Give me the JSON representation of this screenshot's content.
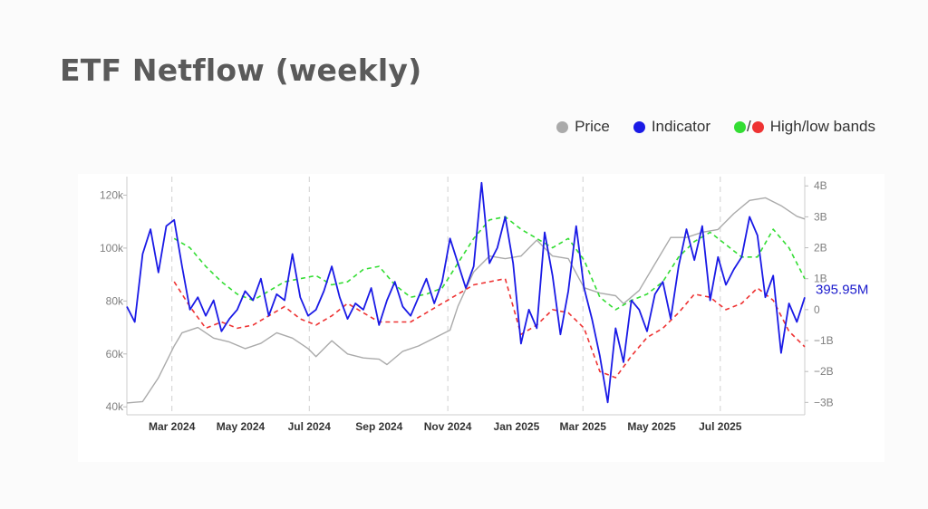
{
  "title": "ETF Netflow (weekly)",
  "legend": {
    "price": {
      "label": "Price",
      "color": "#aaaaaa",
      "icon": "circle-marker"
    },
    "indicator": {
      "label": "Indicator",
      "color": "#1a1ae6",
      "icon": "circle-marker"
    },
    "bands": {
      "label": "High/low bands",
      "separator": "/",
      "high_color": "#33dd33",
      "low_color": "#ee3333"
    }
  },
  "chart_data": {
    "type": "line",
    "x_type": "date",
    "xlim": [
      "2024-01-21",
      "2025-09-14"
    ],
    "x_ticks": [
      {
        "date": "2024-03-01",
        "label": "Mar 2024"
      },
      {
        "date": "2024-05-01",
        "label": "May 2024"
      },
      {
        "date": "2024-07-01",
        "label": "Jul 2024"
      },
      {
        "date": "2024-09-01",
        "label": "Sep 2024"
      },
      {
        "date": "2024-11-01",
        "label": "Nov 2024"
      },
      {
        "date": "2025-01-01",
        "label": "Jan 2025"
      },
      {
        "date": "2025-03-01",
        "label": "Mar 2025"
      },
      {
        "date": "2025-05-01",
        "label": "May 2025"
      },
      {
        "date": "2025-07-01",
        "label": "Jul 2025"
      }
    ],
    "dashed_vlines": [
      "2024-03-01",
      "2024-07-01",
      "2024-11-01",
      "2025-03-01",
      "2025-07-01"
    ],
    "y_left": {
      "range": [
        37000,
        127000
      ],
      "ticks": [
        40000,
        60000,
        80000,
        100000,
        120000
      ],
      "tick_labels": [
        "40k",
        "60k",
        "80k",
        "100k",
        "120k"
      ]
    },
    "y_right": {
      "range": [
        -3400000000,
        4300000000
      ],
      "ticks": [
        -3000000000,
        -2000000000,
        -1000000000,
        0,
        1000000000,
        2000000000,
        3000000000,
        4000000000
      ],
      "tick_labels": [
        "−3B",
        "−2B",
        "−1B",
        "0",
        "1B",
        "2B",
        "3B",
        "4B"
      ]
    },
    "last_value_label": "395.95M",
    "series": [
      {
        "name": "Price",
        "axis": "left",
        "color": "#aaaaaa",
        "dash": "solid",
        "x": [
          "2024-01-21",
          "2024-02-04",
          "2024-02-18",
          "2024-03-03",
          "2024-03-10",
          "2024-03-24",
          "2024-04-07",
          "2024-04-21",
          "2024-05-05",
          "2024-05-19",
          "2024-06-02",
          "2024-06-16",
          "2024-06-30",
          "2024-07-07",
          "2024-07-21",
          "2024-08-04",
          "2024-08-18",
          "2024-09-01",
          "2024-09-08",
          "2024-09-22",
          "2024-10-06",
          "2024-10-20",
          "2024-11-03",
          "2024-11-10",
          "2024-11-24",
          "2024-12-08",
          "2024-12-22",
          "2025-01-05",
          "2025-01-19",
          "2025-02-02",
          "2025-02-16",
          "2025-03-02",
          "2025-03-16",
          "2025-03-30",
          "2025-04-06",
          "2025-04-20",
          "2025-05-04",
          "2025-05-18",
          "2025-06-01",
          "2025-06-15",
          "2025-06-29",
          "2025-07-13",
          "2025-07-27",
          "2025-08-10",
          "2025-08-24",
          "2025-09-07",
          "2025-09-14"
        ],
        "values": [
          41500,
          42000,
          51000,
          63000,
          68000,
          70000,
          66000,
          64500,
          62000,
          64000,
          68000,
          66000,
          62000,
          59000,
          65000,
          60000,
          58500,
          58000,
          56000,
          61000,
          63000,
          66000,
          69000,
          78000,
          91000,
          97000,
          96000,
          97000,
          103000,
          97000,
          96000,
          85000,
          83000,
          82000,
          79000,
          84000,
          94000,
          104000,
          104000,
          106000,
          107000,
          113000,
          118000,
          119000,
          116000,
          112000,
          111000
        ]
      },
      {
        "name": "Indicator",
        "axis": "right",
        "color": "#1a1ae6",
        "dash": "solid",
        "x": [
          "2024-01-21",
          "2024-01-28",
          "2024-02-04",
          "2024-02-11",
          "2024-02-18",
          "2024-02-25",
          "2024-03-03",
          "2024-03-10",
          "2024-03-17",
          "2024-03-24",
          "2024-03-31",
          "2024-04-07",
          "2024-04-14",
          "2024-04-21",
          "2024-04-28",
          "2024-05-05",
          "2024-05-12",
          "2024-05-19",
          "2024-05-26",
          "2024-06-02",
          "2024-06-09",
          "2024-06-16",
          "2024-06-23",
          "2024-06-30",
          "2024-07-07",
          "2024-07-14",
          "2024-07-21",
          "2024-07-28",
          "2024-08-04",
          "2024-08-11",
          "2024-08-18",
          "2024-08-25",
          "2024-09-01",
          "2024-09-08",
          "2024-09-15",
          "2024-09-22",
          "2024-09-29",
          "2024-10-06",
          "2024-10-13",
          "2024-10-20",
          "2024-10-27",
          "2024-11-03",
          "2024-11-10",
          "2024-11-17",
          "2024-11-24",
          "2024-12-01",
          "2024-12-08",
          "2024-12-15",
          "2024-12-22",
          "2024-12-29",
          "2025-01-05",
          "2025-01-12",
          "2025-01-19",
          "2025-01-26",
          "2025-02-02",
          "2025-02-09",
          "2025-02-16",
          "2025-02-23",
          "2025-03-02",
          "2025-03-09",
          "2025-03-16",
          "2025-03-23",
          "2025-03-30",
          "2025-04-06",
          "2025-04-13",
          "2025-04-20",
          "2025-04-27",
          "2025-05-04",
          "2025-05-11",
          "2025-05-18",
          "2025-05-25",
          "2025-06-01",
          "2025-06-08",
          "2025-06-15",
          "2025-06-22",
          "2025-06-29",
          "2025-07-06",
          "2025-07-13",
          "2025-07-20",
          "2025-07-27",
          "2025-08-03",
          "2025-08-10",
          "2025-08-17",
          "2025-08-24",
          "2025-08-31",
          "2025-09-07",
          "2025-09-14"
        ],
        "values": [
          0.1,
          -0.4,
          1.8,
          2.6,
          1.2,
          2.7,
          2.9,
          1.4,
          0.0,
          0.4,
          -0.2,
          0.3,
          -0.7,
          -0.3,
          0.0,
          0.6,
          0.3,
          1.0,
          -0.2,
          0.5,
          0.3,
          1.8,
          0.4,
          -0.2,
          0.0,
          0.6,
          1.4,
          0.4,
          -0.3,
          0.2,
          0.0,
          0.7,
          -0.5,
          0.3,
          0.9,
          0.1,
          -0.2,
          0.4,
          1.0,
          0.2,
          0.9,
          2.3,
          1.5,
          0.7,
          1.4,
          4.1,
          1.5,
          2.0,
          3.0,
          1.5,
          -1.1,
          0.0,
          -0.6,
          2.5,
          1.1,
          -0.8,
          0.6,
          2.7,
          0.7,
          -0.3,
          -1.5,
          -3.0,
          -0.6,
          -1.7,
          0.3,
          0.0,
          -0.7,
          0.5,
          0.9,
          -0.3,
          1.4,
          2.6,
          1.6,
          2.7,
          0.3,
          1.7,
          0.8,
          1.3,
          1.7,
          3.0,
          2.4,
          0.4,
          1.1,
          -1.4,
          0.2,
          -0.4,
          0.39595
        ]
      },
      {
        "name": "High band",
        "axis": "right",
        "color": "#33dd33",
        "dash": "dashed",
        "x": [
          "2024-03-03",
          "2024-03-17",
          "2024-03-31",
          "2024-04-14",
          "2024-04-28",
          "2024-05-12",
          "2024-05-26",
          "2024-06-09",
          "2024-06-23",
          "2024-07-07",
          "2024-07-21",
          "2024-08-04",
          "2024-08-18",
          "2024-09-01",
          "2024-09-15",
          "2024-09-29",
          "2024-10-13",
          "2024-10-27",
          "2024-11-10",
          "2024-11-24",
          "2024-12-08",
          "2024-12-22",
          "2025-01-05",
          "2025-01-19",
          "2025-02-02",
          "2025-02-16",
          "2025-03-02",
          "2025-03-16",
          "2025-03-30",
          "2025-04-13",
          "2025-04-27",
          "2025-05-11",
          "2025-05-25",
          "2025-06-08",
          "2025-06-22",
          "2025-07-06",
          "2025-07-20",
          "2025-08-03",
          "2025-08-17",
          "2025-08-31",
          "2025-09-14"
        ],
        "values": [
          2.3,
          2.0,
          1.4,
          0.9,
          0.5,
          0.3,
          0.6,
          0.9,
          1.0,
          1.1,
          0.8,
          0.9,
          1.3,
          1.4,
          0.8,
          0.4,
          0.5,
          0.7,
          1.5,
          2.3,
          2.9,
          3.0,
          2.6,
          2.3,
          2.0,
          2.3,
          1.6,
          0.4,
          0.0,
          0.3,
          0.5,
          0.9,
          1.7,
          2.2,
          2.5,
          2.1,
          1.7,
          1.7,
          2.6,
          2.0,
          1.0
        ]
      },
      {
        "name": "Low band",
        "axis": "right",
        "color": "#ee3333",
        "dash": "dashed",
        "x": [
          "2024-03-03",
          "2024-03-17",
          "2024-03-31",
          "2024-04-14",
          "2024-04-28",
          "2024-05-12",
          "2024-05-26",
          "2024-06-09",
          "2024-06-23",
          "2024-07-07",
          "2024-07-21",
          "2024-08-04",
          "2024-08-18",
          "2024-09-01",
          "2024-09-15",
          "2024-09-29",
          "2024-10-13",
          "2024-10-27",
          "2024-11-10",
          "2024-11-24",
          "2024-12-08",
          "2024-12-22",
          "2025-01-05",
          "2025-01-19",
          "2025-02-02",
          "2025-02-16",
          "2025-03-02",
          "2025-03-16",
          "2025-03-30",
          "2025-04-13",
          "2025-04-27",
          "2025-05-11",
          "2025-05-25",
          "2025-06-08",
          "2025-06-22",
          "2025-07-06",
          "2025-07-20",
          "2025-08-03",
          "2025-08-17",
          "2025-08-31",
          "2025-09-14"
        ],
        "values": [
          0.9,
          0.1,
          -0.6,
          -0.4,
          -0.6,
          -0.5,
          -0.2,
          0.1,
          -0.3,
          -0.5,
          -0.2,
          0.2,
          -0.1,
          -0.4,
          -0.4,
          -0.4,
          -0.1,
          0.2,
          0.5,
          0.8,
          0.9,
          1.0,
          -0.8,
          -0.5,
          0.0,
          -0.1,
          -0.6,
          -2.0,
          -2.2,
          -1.5,
          -0.9,
          -0.6,
          -0.1,
          0.5,
          0.4,
          0.0,
          0.2,
          0.7,
          0.3,
          -0.7,
          -1.2
        ]
      }
    ]
  }
}
